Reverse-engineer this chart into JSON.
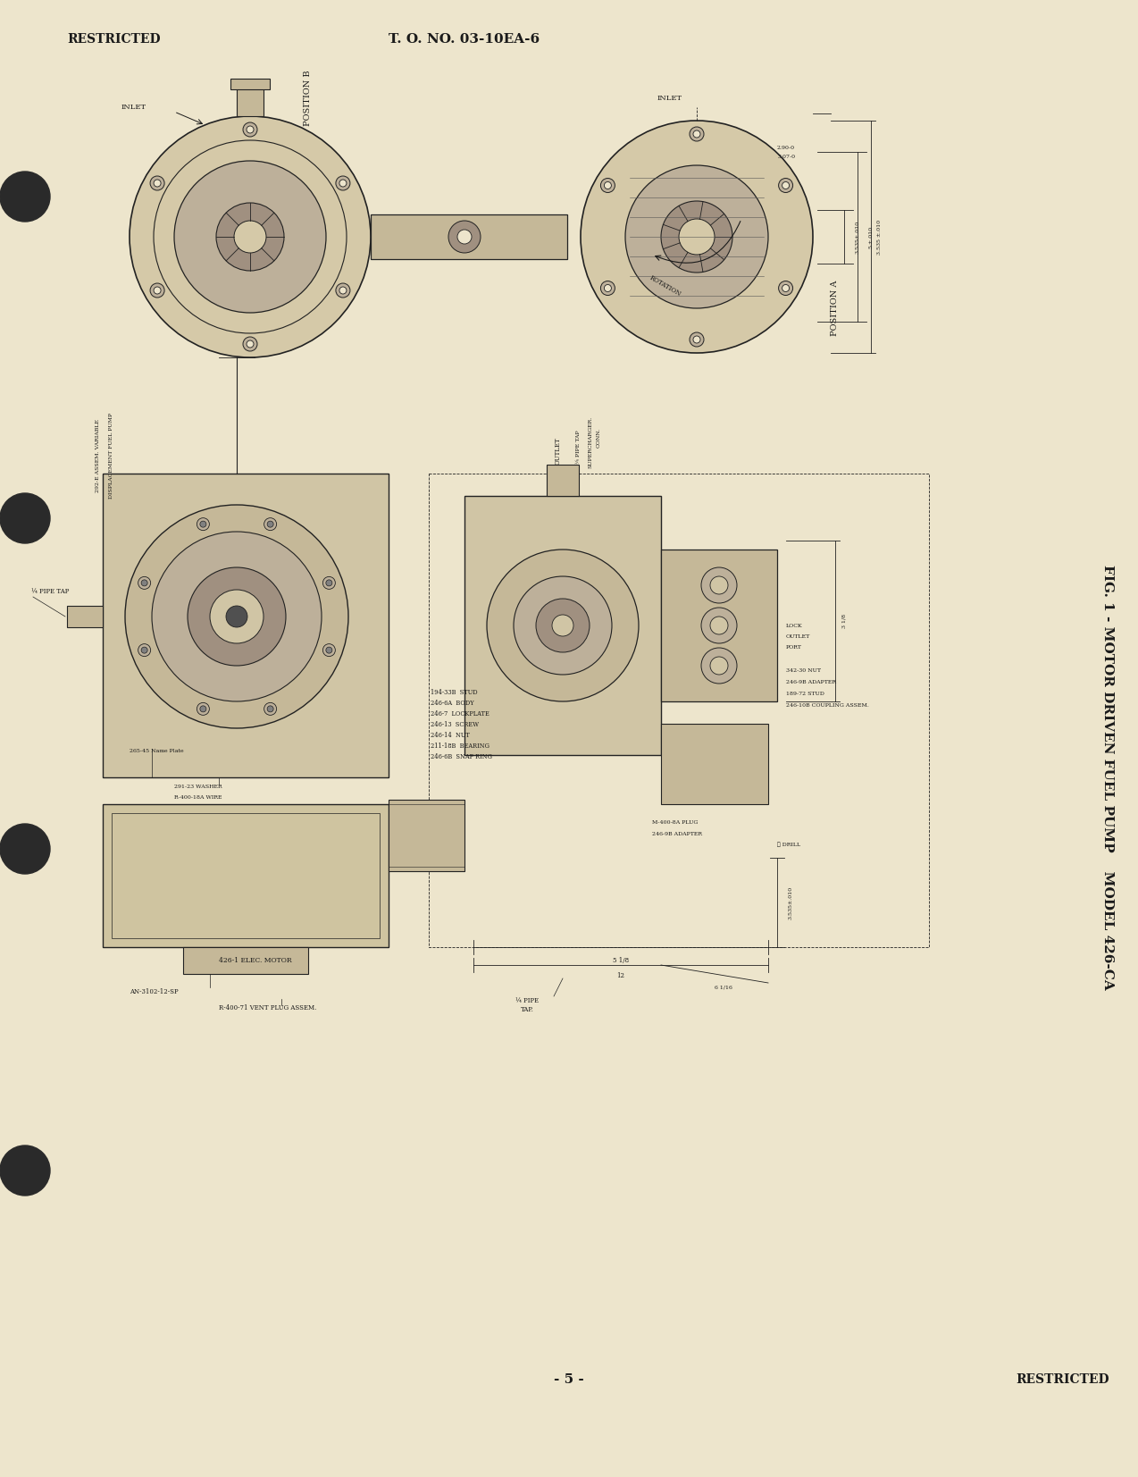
{
  "background_color": "#e8e0cc",
  "page_color": "#ede5cc",
  "header_left": "RESTRICTED",
  "header_center": "T. O. NO. 03-10EA-6",
  "footer_center": "- 5 -",
  "footer_right": "RESTRICTED",
  "fig_caption": "FIG. 1 - MOTOR DRIVEN FUEL PUMP    MODEL 426-CA",
  "title_fontsize": 11,
  "text_color": "#1a1a1a",
  "hole_color": "#2a2a2a",
  "line_color": "#1a1a1a",
  "drawing_color": "#2a2020"
}
